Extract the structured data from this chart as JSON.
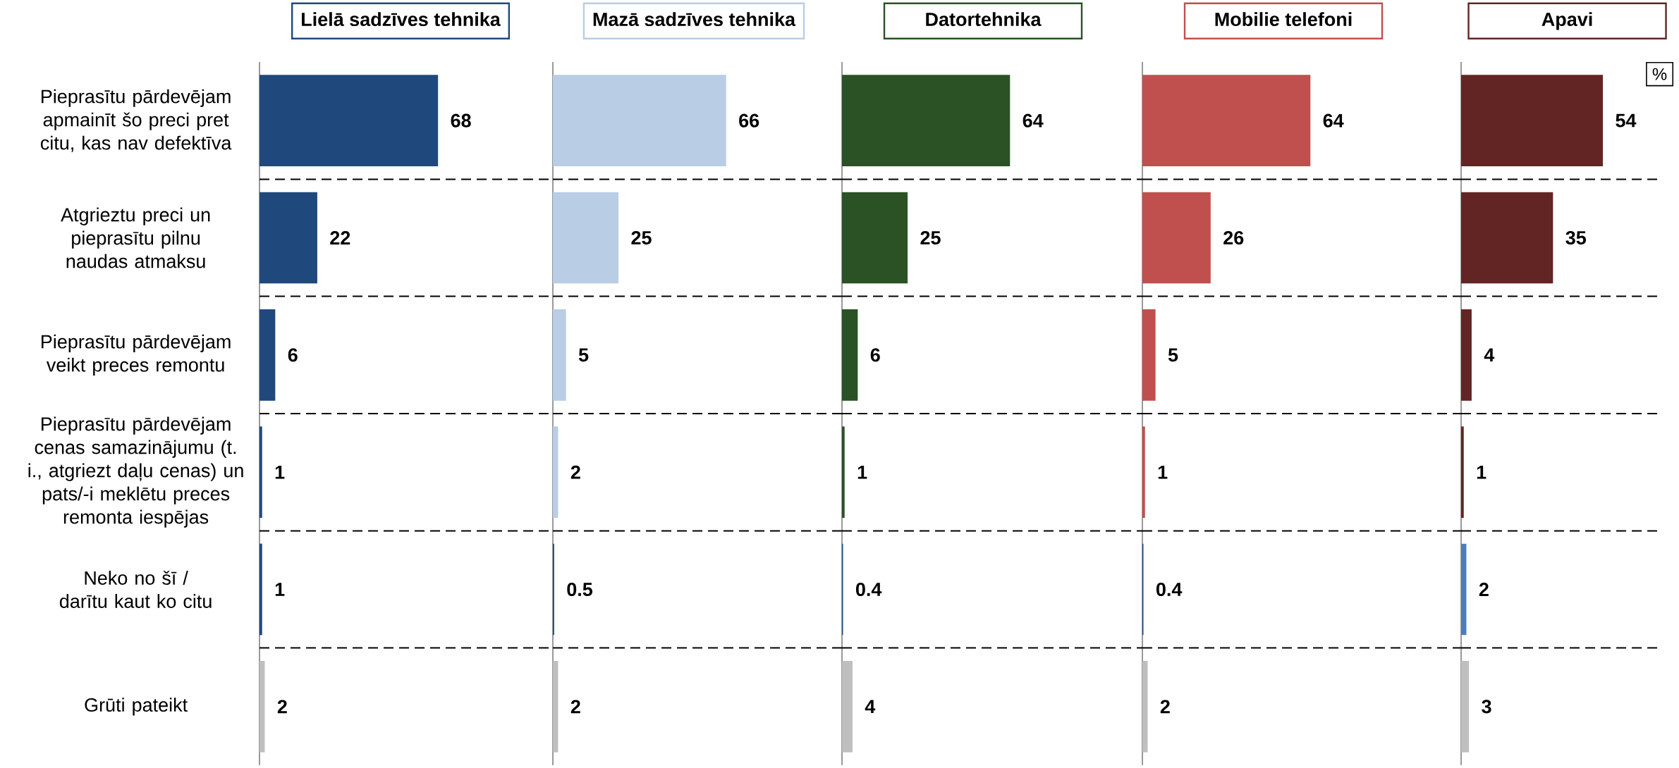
{
  "chart_data": [
    {
      "type": "bar",
      "orientation": "horizontal",
      "title": "Lielā sadzīves tehnika",
      "categories": [
        "Pieprasītu pārdevējam apmainīt šo preci pret citu, kas nav defektīva",
        "Atgrieztu preci un pieprasītu pilnu naudas atmaksu",
        "Pieprasītu pārdevējam veikt preces remontu",
        "Pieprasītu pārdevējam cenas samazinājumu (t. i., atgriezt daļu cenas) un pats/-i meklētu preces remonta iespējas",
        "Neko no šī / darītu kaut ko citu",
        "Grūti pateikt"
      ],
      "values": [
        68,
        22,
        6,
        1,
        1,
        2
      ],
      "colors": [
        "#1f497d",
        "#1f497d",
        "#1f497d",
        "#1f497d",
        "#1f497d",
        "#bfbfbf"
      ],
      "data_labels": true,
      "grid": "y",
      "tick_labels": "y"
    },
    {
      "type": "bar",
      "orientation": "horizontal",
      "title": "Mazā sadzīves tehnika",
      "categories": [
        null,
        null,
        null,
        null,
        null,
        null
      ],
      "values": [
        66,
        25,
        5,
        2,
        0.5,
        2
      ],
      "colors": [
        "#b9cde5",
        "#b9cde5",
        "#b9cde5",
        "#b9cde5",
        "#1f497d",
        "#bfbfbf"
      ],
      "data_labels": true,
      "grid": "y",
      "tick_labels": false
    },
    {
      "type": "bar",
      "orientation": "horizontal",
      "title": "Datortehnika",
      "categories": [
        null,
        null,
        null,
        null,
        null,
        null
      ],
      "values": [
        64,
        25,
        6,
        1,
        0.4,
        4
      ],
      "colors": [
        "#2a5225",
        "#2a5225",
        "#2a5225",
        "#2a5225",
        "#1f497d",
        "#bfbfbf"
      ],
      "data_labels": true,
      "grid": "y",
      "tick_labels": false
    },
    {
      "type": "bar",
      "orientation": "horizontal",
      "title": "Mobilie telefoni",
      "categories": [
        null,
        null,
        null,
        null,
        null,
        null
      ],
      "values": [
        64,
        26,
        5,
        1,
        0.4,
        2
      ],
      "colors": [
        "#c0504d",
        "#c0504d",
        "#c0504d",
        "#c0504d",
        "#1f497d",
        "#bfbfbf"
      ],
      "data_labels": true,
      "grid": "y",
      "tick_labels": false
    },
    {
      "type": "bar",
      "orientation": "horizontal",
      "title": "Apavi",
      "categories": [
        null,
        null,
        null,
        null,
        null,
        null
      ],
      "values": [
        54,
        35,
        4,
        1,
        2,
        3
      ],
      "colors": [
        "#632523",
        "#632523",
        "#632523",
        "#632523",
        "#4a7ebb",
        "#bfbfbf"
      ],
      "data_labels": true,
      "grid": "y",
      "tick_labels": false,
      "annotations": [
        "%"
      ]
    }
  ]
}
